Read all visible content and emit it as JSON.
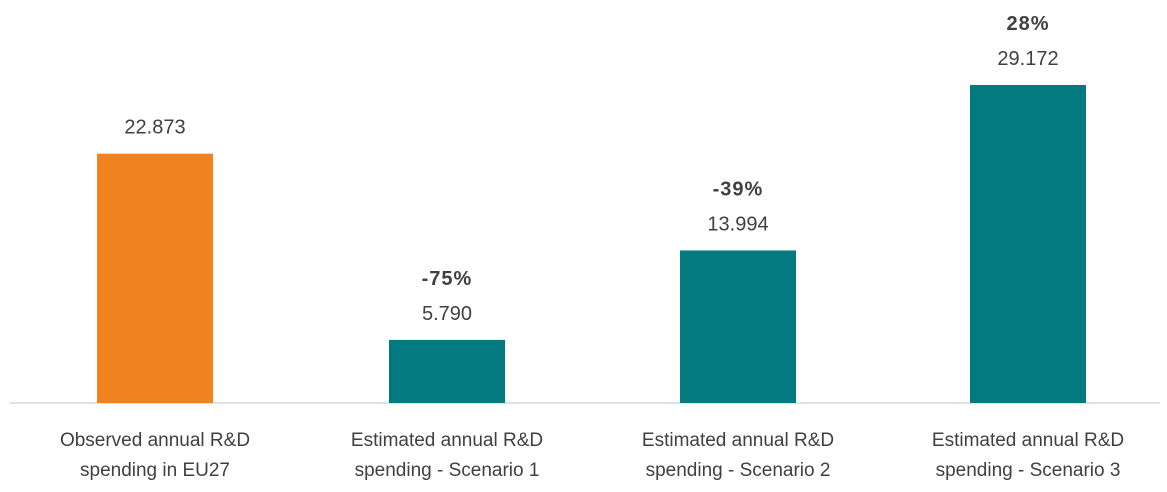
{
  "chart_data": {
    "type": "bar",
    "title": "",
    "xlabel": "",
    "ylabel": "",
    "ylim": [
      0,
      30
    ],
    "grid": false,
    "legend": "none",
    "categories": [
      [
        "Observed annual R&D",
        "spending in EU27"
      ],
      [
        "Estimated annual R&D",
        "spending - Scenario 1"
      ],
      [
        "Estimated annual R&D",
        "spending - Scenario 2"
      ],
      [
        "Estimated annual R&D",
        "spending - Scenario 3"
      ]
    ],
    "values": [
      22.873,
      5.79,
      13.994,
      29.172
    ],
    "value_labels": [
      "22.873",
      "5.790",
      "13.994",
      "29.172"
    ],
    "change_labels": [
      "",
      "-75%",
      "-39%",
      "28%"
    ],
    "colors": [
      "#F0831E",
      "#037A80",
      "#037A80",
      "#037A80"
    ]
  },
  "axis_color": "#D9D9D9"
}
